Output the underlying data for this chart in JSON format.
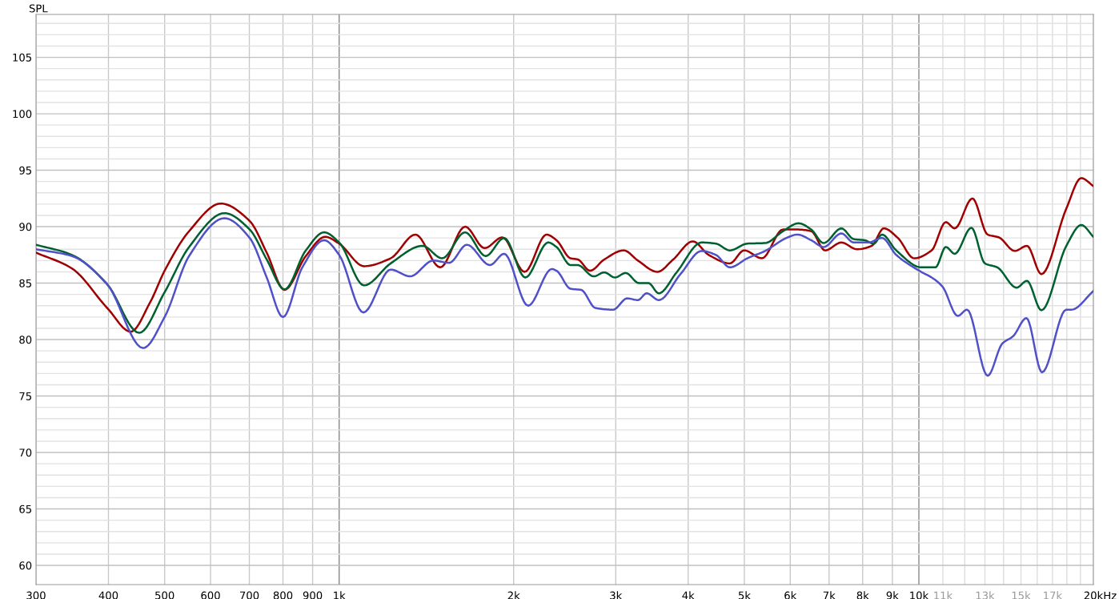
{
  "chart_data": {
    "type": "line",
    "ylabel": "SPL",
    "log": "x",
    "grid": true,
    "line_style": "solid",
    "xlim": [
      300,
      20000
    ],
    "ylim": [
      58.3,
      108.8
    ],
    "xticks": [
      300,
      400,
      500,
      600,
      700,
      800,
      900,
      {
        "value": 1000,
        "label": "1k"
      },
      {
        "value": 2000,
        "label": "2k"
      },
      {
        "value": 3000,
        "label": "3k"
      },
      {
        "value": 4000,
        "label": "4k"
      },
      {
        "value": 5000,
        "label": "5k"
      },
      {
        "value": 6000,
        "label": "6k"
      },
      {
        "value": 7000,
        "label": "7k"
      },
      {
        "value": 8000,
        "label": "8k"
      },
      {
        "value": 9000,
        "label": "9k"
      },
      {
        "value": 10000,
        "label": "10k"
      },
      {
        "value": 11000,
        "label": "11k"
      },
      {
        "value": 12000,
        "label": null
      },
      {
        "value": 13000,
        "label": "13k"
      },
      {
        "value": 14000,
        "label": null
      },
      {
        "value": 15000,
        "label": "15k"
      },
      {
        "value": 16000,
        "label": null
      },
      {
        "value": 17000,
        "label": "17k"
      },
      {
        "value": 18000,
        "label": null
      },
      {
        "value": 19000,
        "label": null
      },
      {
        "value": 20000,
        "label": "20k"
      }
    ],
    "xlabel": "Hz",
    "yticks": [
      60,
      {
        "value": 61,
        "label": null
      },
      {
        "value": 62,
        "label": null
      },
      {
        "value": 63,
        "label": null
      },
      {
        "value": 64,
        "label": null
      },
      65,
      {
        "value": 66,
        "label": null
      },
      {
        "value": 67,
        "label": null
      },
      {
        "value": 68,
        "label": null
      },
      {
        "value": 69,
        "label": null
      },
      70,
      {
        "value": 71,
        "label": null
      },
      {
        "value": 72,
        "label": null
      },
      {
        "value": 73,
        "label": null
      },
      {
        "value": 74,
        "label": null
      },
      75,
      {
        "value": 76,
        "label": null
      },
      {
        "value": 77,
        "label": null
      },
      {
        "value": 78,
        "label": null
      },
      {
        "value": 79,
        "label": null
      },
      80,
      {
        "value": 81,
        "label": null
      },
      {
        "value": 82,
        "label": null
      },
      {
        "value": 83,
        "label": null
      },
      {
        "value": 84,
        "label": null
      },
      85,
      {
        "value": 86,
        "label": null
      },
      {
        "value": 87,
        "label": null
      },
      {
        "value": 88,
        "label": null
      },
      {
        "value": 89,
        "label": null
      },
      90,
      {
        "value": 91,
        "label": null
      },
      {
        "value": 92,
        "label": null
      },
      {
        "value": 93,
        "label": null
      },
      {
        "value": 94,
        "label": null
      },
      95,
      {
        "value": 96,
        "label": null
      },
      {
        "value": 97,
        "label": null
      },
      {
        "value": 98,
        "label": null
      },
      {
        "value": 99,
        "label": null
      },
      100,
      {
        "value": 101,
        "label": null
      },
      {
        "value": 102,
        "label": null
      },
      {
        "value": 103,
        "label": null
      },
      {
        "value": 104,
        "label": null
      },
      105,
      {
        "value": 106,
        "label": null
      },
      {
        "value": 107,
        "label": null
      },
      {
        "value": 108,
        "label": null
      }
    ],
    "series": [
      {
        "color": "#a00000",
        "x": [
          300,
          346,
          398,
          437,
          472,
          500,
          551,
          625,
          701,
          750,
          805,
          876,
          946,
          1000,
          1104,
          1227,
          1354,
          1494,
          1649,
          1782,
          1912,
          2089,
          2279,
          2371,
          2507,
          2579,
          2709,
          2867,
          3097,
          3276,
          3539,
          3770,
          4074,
          4340,
          4720,
          4996,
          5360,
          5830,
          6170,
          6520,
          6890,
          7350,
          7820,
          8290,
          8700,
          9200,
          9810,
          10520,
          11130,
          11530,
          12370,
          13140,
          13740,
          14640,
          15360,
          16270,
          17960,
          19060,
          20000
        ],
        "values": [
          87.7,
          86.3,
          82.8,
          80.7,
          83.3,
          86.1,
          89.6,
          92.05,
          90.5,
          87.7,
          84.4,
          87.4,
          89.1,
          88.5,
          86.5,
          87.2,
          89.3,
          86.4,
          90.0,
          88.1,
          89.05,
          86.0,
          89.3,
          88.8,
          87.2,
          87.1,
          86.1,
          87.1,
          87.9,
          87.0,
          86.0,
          87.1,
          88.7,
          87.5,
          86.75,
          87.9,
          87.2,
          89.75,
          89.75,
          89.6,
          87.9,
          88.6,
          88.0,
          88.3,
          89.85,
          89.0,
          87.2,
          87.9,
          90.4,
          89.85,
          92.5,
          89.3,
          89.05,
          87.85,
          88.3,
          85.8,
          91.6,
          94.3,
          93.6
        ]
      },
      {
        "color": "#006030",
        "x": [
          300,
          346,
          398,
          452,
          500,
          551,
          634,
          701,
          750,
          805,
          876,
          942,
          1000,
          1104,
          1227,
          1393,
          1505,
          1649,
          1790,
          1926,
          2095,
          2294,
          2371,
          2507,
          2579,
          2748,
          2867,
          2990,
          3120,
          3290,
          3416,
          3560,
          3820,
          4220,
          4465,
          4720,
          5060,
          5430,
          5830,
          6200,
          6520,
          6850,
          7350,
          7720,
          8060,
          8360,
          8640,
          9140,
          10090,
          10680,
          11130,
          11530,
          12320,
          13000,
          13650,
          14740,
          15360,
          16270,
          17960,
          19060,
          20000
        ],
        "values": [
          88.4,
          87.5,
          84.9,
          80.6,
          84.2,
          88.2,
          91.2,
          89.75,
          87.1,
          84.45,
          87.9,
          89.5,
          88.6,
          84.8,
          86.75,
          88.3,
          87.2,
          89.5,
          87.4,
          89.0,
          85.5,
          88.6,
          88.2,
          86.6,
          86.6,
          85.6,
          85.95,
          85.5,
          85.9,
          85.0,
          85.0,
          84.1,
          85.95,
          88.6,
          88.5,
          87.9,
          88.5,
          88.55,
          89.6,
          90.3,
          89.75,
          88.55,
          89.85,
          88.9,
          88.8,
          88.5,
          89.3,
          87.9,
          86.4,
          86.4,
          88.2,
          87.6,
          89.9,
          86.75,
          86.4,
          84.6,
          85.2,
          82.6,
          88.3,
          90.15,
          89.1
        ]
      },
      {
        "color": "#5050c8",
        "x": [
          300,
          346,
          398,
          459,
          500,
          551,
          634,
          701,
          750,
          800,
          864,
          942,
          1000,
          1101,
          1227,
          1326,
          1453,
          1548,
          1661,
          1820,
          1926,
          2118,
          2327,
          2371,
          2507,
          2615,
          2767,
          2969,
          3139,
          3276,
          3393,
          3560,
          3880,
          4220,
          4465,
          4720,
          5060,
          5430,
          5910,
          6170,
          6520,
          6850,
          7350,
          7720,
          8180,
          8640,
          9140,
          10090,
          10520,
          10980,
          11670,
          12110,
          13140,
          13930,
          14540,
          15330,
          16310,
          17960,
          18330,
          20000
        ],
        "values": [
          88.0,
          87.4,
          84.9,
          79.25,
          82.0,
          87.4,
          90.75,
          89.0,
          85.5,
          82.0,
          86.4,
          88.8,
          87.5,
          82.4,
          86.2,
          85.6,
          87.0,
          86.8,
          88.4,
          86.6,
          87.6,
          83.0,
          86.25,
          86.1,
          84.5,
          84.4,
          82.8,
          82.65,
          83.65,
          83.5,
          84.1,
          83.5,
          85.8,
          87.85,
          87.5,
          86.4,
          87.2,
          87.85,
          89.0,
          89.3,
          88.8,
          88.2,
          89.4,
          88.6,
          88.6,
          89.0,
          87.5,
          86.0,
          85.5,
          84.7,
          82.1,
          82.65,
          76.8,
          79.65,
          80.3,
          81.9,
          77.1,
          82.65,
          82.65,
          84.3
        ]
      }
    ]
  }
}
